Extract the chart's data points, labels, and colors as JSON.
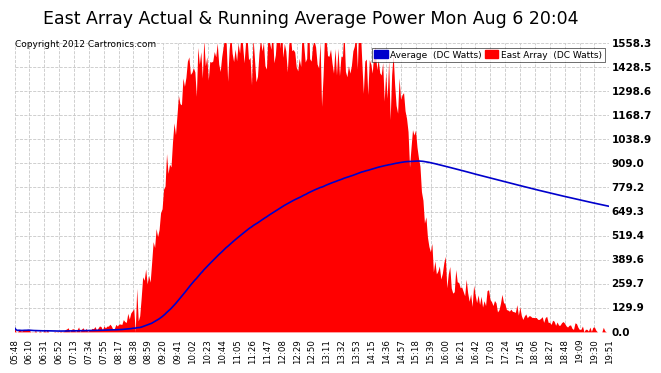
{
  "title": "East Array Actual & Running Average Power Mon Aug 6 20:04",
  "copyright": "Copyright 2012 Cartronics.com",
  "legend_avg": "Average  (DC Watts)",
  "legend_east": "East Array  (DC Watts)",
  "yticks": [
    0.0,
    129.9,
    259.7,
    389.6,
    519.4,
    649.3,
    779.2,
    909.0,
    1038.9,
    1168.7,
    1298.6,
    1428.5,
    1558.3
  ],
  "ymax": 1558.3,
  "ymin": 0.0,
  "bg_color": "#ffffff",
  "plot_bg_color": "#ffffff",
  "grid_color": "#c8c8c8",
  "fill_color": "#ff0000",
  "avg_line_color": "#0000cc",
  "title_fontsize": 13,
  "x_labels": [
    "05:48",
    "06:10",
    "06:31",
    "06:52",
    "07:13",
    "07:34",
    "07:55",
    "08:17",
    "08:38",
    "08:59",
    "09:20",
    "09:41",
    "10:02",
    "10:23",
    "10:44",
    "11:05",
    "11:26",
    "11:47",
    "12:08",
    "12:29",
    "12:50",
    "13:11",
    "13:32",
    "13:53",
    "14:15",
    "14:36",
    "14:57",
    "15:18",
    "15:39",
    "16:00",
    "16:21",
    "16:42",
    "17:03",
    "17:24",
    "17:45",
    "18:06",
    "18:27",
    "18:48",
    "19:09",
    "19:30",
    "19:51"
  ]
}
